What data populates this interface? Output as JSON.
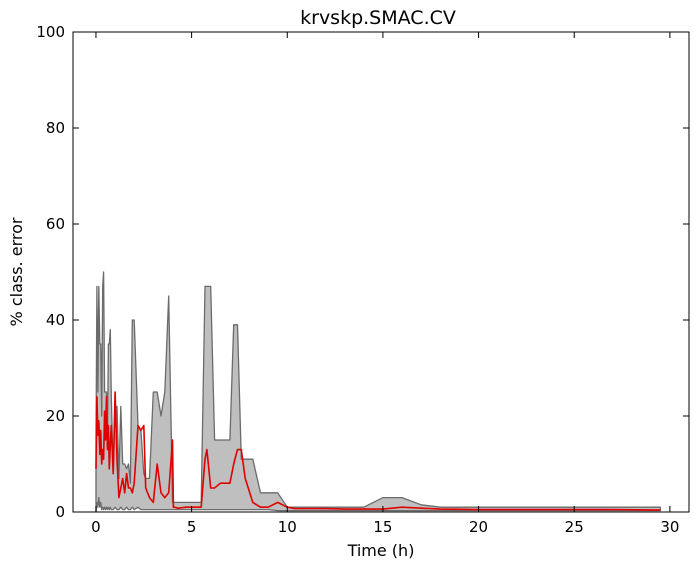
{
  "chart_data": {
    "type": "line",
    "title": "krvskp.SMAC.CV",
    "xlabel": "Time (h)",
    "ylabel": "% class. error",
    "xlim": [
      -1.2,
      31
    ],
    "ylim": [
      0,
      100
    ],
    "xticks": [
      0,
      5,
      10,
      15,
      20,
      25,
      30
    ],
    "yticks": [
      0,
      20,
      40,
      60,
      80,
      100
    ],
    "grid": false,
    "colors": {
      "line": "#e00000",
      "band_fill": "#bfbfbf",
      "band_edge": "#6b6b6b"
    },
    "series": [
      {
        "x": [
          0.0,
          0.05,
          0.1,
          0.15,
          0.2,
          0.25,
          0.3,
          0.35,
          0.4,
          0.45,
          0.5,
          0.55,
          0.6,
          0.65,
          0.7,
          0.75,
          0.8,
          0.9,
          1.0,
          1.1,
          1.2,
          1.3,
          1.4,
          1.5,
          1.6,
          1.7,
          1.8,
          1.9,
          2.0,
          2.2,
          2.35,
          2.5,
          2.6,
          2.8,
          3.0,
          3.2,
          3.4,
          3.6,
          3.8,
          4.0,
          4.05,
          4.1,
          4.3,
          4.7,
          5.0,
          5.3,
          5.5,
          5.7,
          5.8,
          6.0,
          6.2,
          6.5,
          7.0,
          7.2,
          7.4,
          7.6,
          7.8,
          8.2,
          8.6,
          9.0,
          9.5,
          10.0,
          10.4,
          11,
          12,
          13,
          14,
          15,
          16,
          17,
          18,
          20,
          21,
          25,
          27,
          29.5
        ],
        "values": [
          9,
          24,
          16,
          19,
          12,
          17,
          10,
          13,
          11,
          21,
          15,
          24,
          13,
          18,
          9,
          14,
          18,
          8,
          25,
          11,
          3,
          5,
          7,
          4,
          8,
          5,
          5,
          4,
          6,
          18,
          17,
          18,
          5,
          3,
          2,
          10,
          4,
          3,
          4,
          15,
          1,
          1,
          0.8,
          1,
          1,
          1,
          1,
          11,
          13,
          5,
          5,
          6,
          6,
          10,
          13,
          13,
          7,
          2,
          1,
          1,
          2,
          1,
          0.7,
          0.7,
          0.7,
          0.6,
          0.6,
          0.6,
          1,
          0.8,
          0.6,
          0.5,
          0.5,
          0.5,
          0.5,
          0.4
        ],
        "upper": [
          15,
          47,
          25,
          47,
          35,
          35,
          20,
          47,
          50,
          25,
          25,
          25,
          14,
          35,
          35,
          38,
          24,
          8,
          22,
          22,
          7,
          22,
          10,
          10,
          9,
          10,
          6,
          40,
          40,
          18,
          17,
          8,
          7,
          7,
          25,
          25,
          20,
          25,
          45,
          2,
          2,
          2,
          2,
          2,
          2,
          2,
          2,
          47,
          47,
          47,
          15,
          15,
          15,
          39,
          39,
          11,
          11,
          11,
          4,
          4,
          4,
          1,
          1,
          1,
          1,
          1,
          1,
          3,
          3,
          1.5,
          1,
          1,
          1,
          1,
          1,
          1
        ],
        "lower": [
          0,
          2,
          1,
          3,
          1,
          2,
          0.5,
          1,
          0.5,
          1,
          0.5,
          1,
          0.5,
          1,
          0.5,
          1,
          0.5,
          0.5,
          1,
          0.5,
          0.5,
          1,
          0.5,
          0.5,
          1,
          0.5,
          0.5,
          1,
          0.5,
          1,
          0.5,
          0.5,
          0.5,
          0.5,
          0.5,
          0.5,
          0.5,
          0.5,
          0.5,
          0.5,
          0.5,
          0.5,
          0.5,
          0.5,
          0.5,
          0.5,
          0.5,
          0.5,
          0.5,
          0.5,
          0.5,
          0.5,
          0.5,
          0.5,
          0.5,
          0.5,
          0.5,
          0.5,
          0.5,
          0.5,
          0.3,
          0.3,
          0.3,
          0.3,
          0.3,
          0.3,
          0.3,
          0.3,
          0.3,
          0.3,
          0.3,
          0.3,
          0.3,
          0.3,
          0.3,
          0.3
        ]
      }
    ]
  }
}
